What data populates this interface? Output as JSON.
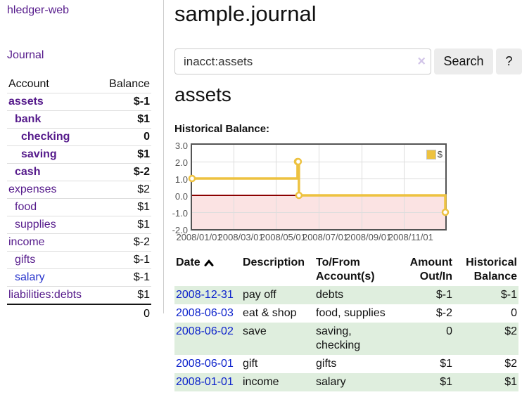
{
  "app": {
    "title": "hledger-web"
  },
  "colors": {
    "link_purple": "#551a8b",
    "link_blue": "#2633cc",
    "date_blue": "#0c22cc",
    "negative_strong": "#8d1414",
    "negative_light": "#c17878",
    "row_green": "#dfeede",
    "button_bg": "#ececec",
    "series_yellow": "#edc240"
  },
  "sidebar": {
    "journal_label": "Journal",
    "accounts_table": {
      "account_header": "Account",
      "balance_header": "Balance",
      "rows": [
        {
          "name": "assets",
          "balance": "$-1",
          "level": 1,
          "in_account": true
        },
        {
          "name": "bank",
          "balance": "$1",
          "level": 2,
          "in_account": true
        },
        {
          "name": "checking",
          "balance": "0",
          "level": 3,
          "in_account": true
        },
        {
          "name": "saving",
          "balance": "$1",
          "level": 3,
          "in_account": true
        },
        {
          "name": "cash",
          "balance": "$-2",
          "level": 2,
          "in_account": true
        },
        {
          "name": "expenses",
          "balance": "$2",
          "level": 1
        },
        {
          "name": "food",
          "balance": "$1",
          "level": 2
        },
        {
          "name": "supplies",
          "balance": "$1",
          "level": 2
        },
        {
          "name": "income",
          "balance": "$-2",
          "level": 1
        },
        {
          "name": "gifts",
          "balance": "$-1",
          "level": 2
        },
        {
          "name": "salary",
          "balance": "$-1",
          "level": 2,
          "unvisited": true
        },
        {
          "name": "liabilities:debts",
          "balance": "$1",
          "level": 1
        }
      ],
      "total": "0"
    }
  },
  "main": {
    "title": "sample.journal",
    "search": {
      "value": "inacct:assets",
      "clear_icon": "×",
      "button_label": "Search",
      "help_label": "?"
    },
    "account_heading": "assets",
    "register": {
      "columns": [
        {
          "label": "Date",
          "align": "left",
          "sorted": "ascending"
        },
        {
          "label": "Description",
          "align": "left"
        },
        {
          "label": "To/From Account(s)",
          "align": "left"
        },
        {
          "label": "Amount Out/In",
          "align": "right"
        },
        {
          "label": "Historical Balance",
          "align": "right"
        }
      ],
      "rows": [
        {
          "date": "2008-12-31",
          "description": "pay off",
          "accounts": "debts",
          "amount": "$-1",
          "balance": "$-1"
        },
        {
          "date": "2008-06-03",
          "description": "eat & shop",
          "accounts": "food, supplies",
          "amount": "$-2",
          "balance": "0"
        },
        {
          "date": "2008-06-02",
          "description": "save",
          "accounts": "saving, checking",
          "amount": "0",
          "balance": "$2"
        },
        {
          "date": "2008-06-01",
          "description": "gift",
          "accounts": "gifts",
          "amount": "$1",
          "balance": "$2"
        },
        {
          "date": "2008-01-01",
          "description": "income",
          "accounts": "salary",
          "amount": "$1",
          "balance": "$1"
        }
      ]
    }
  },
  "chart_data": {
    "type": "line",
    "title": "Historical Balance:",
    "style": "steps",
    "series": [
      {
        "name": "$",
        "color": "#edc240",
        "points": [
          [
            "2008-01-01",
            1
          ],
          [
            "2008-06-01",
            2
          ],
          [
            "2008-06-02",
            2
          ],
          [
            "2008-06-03",
            0
          ],
          [
            "2008-12-31",
            -1
          ]
        ]
      }
    ],
    "x_ticks": [
      "2008/01/01",
      "2008/03/01",
      "2008/05/01",
      "2008/07/01",
      "2008/09/01",
      "2008/11/01"
    ],
    "y_ticks": [
      "3.0",
      "2.0",
      "1.0",
      "0.0",
      "-1.0",
      "-2.0"
    ],
    "xlim": [
      "2008-01-01",
      "2008-12-31"
    ],
    "ylim": [
      -2,
      3
    ],
    "grid": true,
    "legend": {
      "label": "$",
      "position": "top-right"
    },
    "region_colors": {
      "negative_region": "#fbe3e3",
      "zero_line": "#8b0000",
      "grid_line": "#dddddd",
      "border": "#545454"
    }
  }
}
